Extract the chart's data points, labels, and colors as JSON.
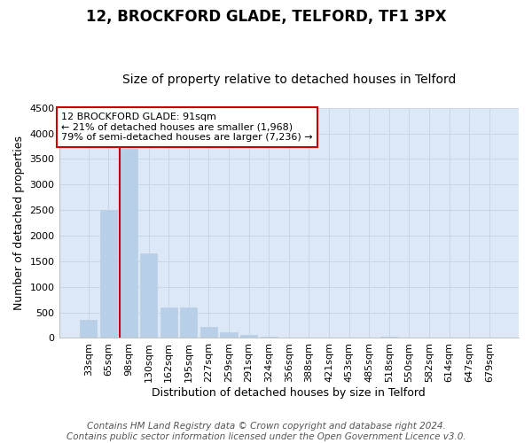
{
  "title": "12, BROCKFORD GLADE, TELFORD, TF1 3PX",
  "subtitle": "Size of property relative to detached houses in Telford",
  "xlabel": "Distribution of detached houses by size in Telford",
  "ylabel": "Number of detached properties",
  "categories": [
    "33sqm",
    "65sqm",
    "98sqm",
    "130sqm",
    "162sqm",
    "195sqm",
    "227sqm",
    "259sqm",
    "291sqm",
    "324sqm",
    "356sqm",
    "388sqm",
    "421sqm",
    "453sqm",
    "485sqm",
    "518sqm",
    "550sqm",
    "582sqm",
    "614sqm",
    "647sqm",
    "679sqm"
  ],
  "values": [
    350,
    2500,
    3700,
    1650,
    590,
    590,
    210,
    110,
    55,
    30,
    15,
    5,
    0,
    0,
    0,
    30,
    0,
    0,
    0,
    0,
    0
  ],
  "bar_color": "#b8cfe8",
  "bar_edge_color": "#b8cfe8",
  "vline_color": "#cc0000",
  "annotation_text": "12 BROCKFORD GLADE: 91sqm\n← 21% of detached houses are smaller (1,968)\n79% of semi-detached houses are larger (7,236) →",
  "annotation_box_facecolor": "#ffffff",
  "annotation_box_edgecolor": "#cc0000",
  "ylim": [
    0,
    4500
  ],
  "yticks": [
    0,
    500,
    1000,
    1500,
    2000,
    2500,
    3000,
    3500,
    4000,
    4500
  ],
  "grid_color": "#c8d4e8",
  "bg_color": "#dce8f5",
  "footer": "Contains HM Land Registry data © Crown copyright and database right 2024.\nContains public sector information licensed under the Open Government Licence v3.0.",
  "title_fontsize": 12,
  "subtitle_fontsize": 10,
  "axis_label_fontsize": 9,
  "tick_fontsize": 8,
  "footer_fontsize": 7.5,
  "annotation_fontsize": 8
}
